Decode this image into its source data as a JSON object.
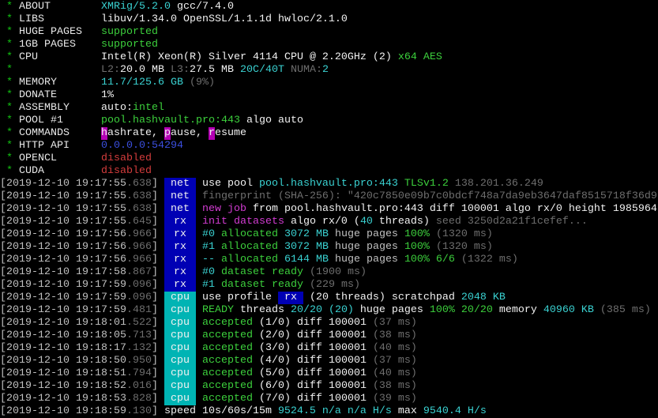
{
  "colors": {
    "net_tag": "#0000b4",
    "rx_tag": "#0000b4",
    "cpu_tag": "#00b4b4",
    "green": "#3ccf3c",
    "cyan": "#3ad2d2",
    "magenta": "#d23cd2",
    "red": "#d43c3c",
    "blue": "#3b4fe0",
    "dim": "#6e6e6e"
  },
  "header": [
    {
      "label": "ABOUT",
      "segments": [
        {
          "t": "XMRig/5.2.0",
          "s": "c"
        },
        {
          "t": " gcc/7.4.0",
          "s": "W"
        }
      ]
    },
    {
      "label": "LIBS",
      "segments": [
        {
          "t": "libuv/1.34.0 OpenSSL/1.1.1d hwloc/2.1.0",
          "s": "W"
        }
      ]
    },
    {
      "label": "HUGE PAGES",
      "segments": [
        {
          "t": "supported",
          "s": "g"
        }
      ]
    },
    {
      "label": "1GB PAGES",
      "segments": [
        {
          "t": "supported",
          "s": "g"
        }
      ]
    },
    {
      "label": "CPU",
      "segments": [
        {
          "t": "Intel(R) Xeon(R) Silver 4114 CPU @ 2.20GHz (2) ",
          "s": "W"
        },
        {
          "t": "x64 AES",
          "s": "g"
        }
      ]
    },
    {
      "label": "",
      "segments": [
        {
          "t": "L2:",
          "s": "k"
        },
        {
          "t": "20.0 MB ",
          "s": "W"
        },
        {
          "t": "L3:",
          "s": "k"
        },
        {
          "t": "27.5 MB ",
          "s": "W"
        },
        {
          "t": "20C/40T ",
          "s": "c"
        },
        {
          "t": "NUMA:",
          "s": "k"
        },
        {
          "t": "2",
          "s": "c"
        }
      ]
    },
    {
      "label": "MEMORY",
      "segments": [
        {
          "t": "11.7/125.6 GB ",
          "s": "c"
        },
        {
          "t": "(9%)",
          "s": "k"
        }
      ]
    },
    {
      "label": "DONATE",
      "segments": [
        {
          "t": "1%",
          "s": "W"
        }
      ]
    },
    {
      "label": "ASSEMBLY",
      "segments": [
        {
          "t": "auto:",
          "s": "W"
        },
        {
          "t": "intel",
          "s": "g"
        }
      ]
    },
    {
      "label": "POOL #1",
      "segments": [
        {
          "t": "pool.hashvault.pro:443 ",
          "s": "g"
        },
        {
          "t": "algo auto",
          "s": "W"
        }
      ]
    },
    {
      "label": "COMMANDS",
      "segments": [
        {
          "t": "h",
          "s": "hl"
        },
        {
          "t": "ashrate, ",
          "s": "W"
        },
        {
          "t": "p",
          "s": "hl"
        },
        {
          "t": "ause, ",
          "s": "W"
        },
        {
          "t": "r",
          "s": "hl"
        },
        {
          "t": "esume",
          "s": "W"
        }
      ]
    },
    {
      "label": "HTTP API",
      "segments": [
        {
          "t": "0.0.0.0:54294",
          "s": "b"
        }
      ]
    },
    {
      "label": "OPENCL",
      "segments": [
        {
          "t": "disabled",
          "s": "r"
        }
      ]
    },
    {
      "label": "CUDA",
      "segments": [
        {
          "t": "disabled",
          "s": "r"
        }
      ]
    }
  ],
  "log": [
    {
      "ts": "2019-12-10 19:17:55",
      "ms": ".638",
      "tag": "net",
      "segments": [
        {
          "t": "use pool ",
          "s": "W"
        },
        {
          "t": "pool.hashvault.pro:443 ",
          "s": "c"
        },
        {
          "t": "TLSv1.2 ",
          "s": "g"
        },
        {
          "t": "138.201.36.249",
          "s": "k"
        }
      ]
    },
    {
      "ts": "2019-12-10 19:17:55",
      "ms": ".638",
      "tag": "net",
      "segments": [
        {
          "t": "fingerprint (SHA-256): \"420c7850e09b7c0bdcf748a7da9eb3647daf8515718f36d9",
          "s": "k"
        }
      ]
    },
    {
      "ts": "2019-12-10 19:17:55",
      "ms": ".638",
      "tag": "net",
      "segments": [
        {
          "t": "new job",
          "s": "m"
        },
        {
          "t": " from pool.hashvault.pro:443 diff 100001 algo rx/0 height 1985964",
          "s": "W"
        }
      ]
    },
    {
      "ts": "2019-12-10 19:17:55",
      "ms": ".645",
      "tag": "rx",
      "segments": [
        {
          "t": "init datasets",
          "s": "m"
        },
        {
          "t": " algo rx/0 (",
          "s": "W"
        },
        {
          "t": "40",
          "s": "c"
        },
        {
          "t": " threads) ",
          "s": "W"
        },
        {
          "t": "seed 3250d2a21f1cefef...",
          "s": "k"
        }
      ]
    },
    {
      "ts": "2019-12-10 19:17:56",
      "ms": ".966",
      "tag": "rx",
      "segments": [
        {
          "t": "#0 ",
          "s": "c"
        },
        {
          "t": "allocated ",
          "s": "g"
        },
        {
          "t": "3072 MB ",
          "s": "c"
        },
        {
          "t": "huge pages ",
          "s": "w"
        },
        {
          "t": "100% ",
          "s": "g"
        },
        {
          "t": "(1320 ms)",
          "s": "k"
        }
      ]
    },
    {
      "ts": "2019-12-10 19:17:56",
      "ms": ".966",
      "tag": "rx",
      "segments": [
        {
          "t": "#1 ",
          "s": "c"
        },
        {
          "t": "allocated ",
          "s": "g"
        },
        {
          "t": "3072 MB ",
          "s": "c"
        },
        {
          "t": "huge pages ",
          "s": "w"
        },
        {
          "t": "100% ",
          "s": "g"
        },
        {
          "t": "(1320 ms)",
          "s": "k"
        }
      ]
    },
    {
      "ts": "2019-12-10 19:17:56",
      "ms": ".966",
      "tag": "rx",
      "segments": [
        {
          "t": "-- ",
          "s": "c"
        },
        {
          "t": "allocated ",
          "s": "g"
        },
        {
          "t": "6144 MB ",
          "s": "c"
        },
        {
          "t": "huge pages ",
          "s": "w"
        },
        {
          "t": "100% 6/6 ",
          "s": "g"
        },
        {
          "t": "(1322 ms)",
          "s": "k"
        }
      ]
    },
    {
      "ts": "2019-12-10 19:17:58",
      "ms": ".867",
      "tag": "rx",
      "segments": [
        {
          "t": "#0 ",
          "s": "c"
        },
        {
          "t": "dataset ready ",
          "s": "g"
        },
        {
          "t": "(1900 ms)",
          "s": "k"
        }
      ]
    },
    {
      "ts": "2019-12-10 19:17:59",
      "ms": ".096",
      "tag": "rx",
      "segments": [
        {
          "t": "#1 ",
          "s": "c"
        },
        {
          "t": "dataset ready ",
          "s": "g"
        },
        {
          "t": "(229 ms)",
          "s": "k"
        }
      ]
    },
    {
      "ts": "2019-12-10 19:17:59",
      "ms": ".096",
      "tag": "cpu",
      "segments": [
        {
          "t": "use profile ",
          "s": "W"
        },
        {
          "t": " rx ",
          "s": "tagrx"
        },
        {
          "t": " (20 threads) scratchpad ",
          "s": "W"
        },
        {
          "t": "2048 KB",
          "s": "c"
        }
      ]
    },
    {
      "ts": "2019-12-10 19:17:59",
      "ms": ".481",
      "tag": "cpu",
      "segments": [
        {
          "t": "READY",
          "s": "g"
        },
        {
          "t": " threads ",
          "s": "W"
        },
        {
          "t": "20/20 (20)",
          "s": "c"
        },
        {
          "t": " huge pages ",
          "s": "W"
        },
        {
          "t": "100% 20/20",
          "s": "g"
        },
        {
          "t": " memory ",
          "s": "W"
        },
        {
          "t": "40960 KB ",
          "s": "c"
        },
        {
          "t": "(385 ms)",
          "s": "k"
        }
      ]
    },
    {
      "ts": "2019-12-10 19:18:01",
      "ms": ".522",
      "tag": "cpu",
      "segments": [
        {
          "t": "accepted",
          "s": "g"
        },
        {
          "t": " (1/0) diff 100001 ",
          "s": "W"
        },
        {
          "t": "(37 ms)",
          "s": "k"
        }
      ]
    },
    {
      "ts": "2019-12-10 19:18:05",
      "ms": ".713",
      "tag": "cpu",
      "segments": [
        {
          "t": "accepted",
          "s": "g"
        },
        {
          "t": " (2/0) diff 100001 ",
          "s": "W"
        },
        {
          "t": "(38 ms)",
          "s": "k"
        }
      ]
    },
    {
      "ts": "2019-12-10 19:18:17",
      "ms": ".132",
      "tag": "cpu",
      "segments": [
        {
          "t": "accepted",
          "s": "g"
        },
        {
          "t": " (3/0) diff 100001 ",
          "s": "W"
        },
        {
          "t": "(40 ms)",
          "s": "k"
        }
      ]
    },
    {
      "ts": "2019-12-10 19:18:50",
      "ms": ".950",
      "tag": "cpu",
      "segments": [
        {
          "t": "accepted",
          "s": "g"
        },
        {
          "t": " (4/0) diff 100001 ",
          "s": "W"
        },
        {
          "t": "(37 ms)",
          "s": "k"
        }
      ]
    },
    {
      "ts": "2019-12-10 19:18:51",
      "ms": ".794",
      "tag": "cpu",
      "segments": [
        {
          "t": "accepted",
          "s": "g"
        },
        {
          "t": " (5/0) diff 100001 ",
          "s": "W"
        },
        {
          "t": "(40 ms)",
          "s": "k"
        }
      ]
    },
    {
      "ts": "2019-12-10 19:18:52",
      "ms": ".016",
      "tag": "cpu",
      "segments": [
        {
          "t": "accepted",
          "s": "g"
        },
        {
          "t": " (6/0) diff 100001 ",
          "s": "W"
        },
        {
          "t": "(38 ms)",
          "s": "k"
        }
      ]
    },
    {
      "ts": "2019-12-10 19:18:53",
      "ms": ".828",
      "tag": "cpu",
      "segments": [
        {
          "t": "accepted",
          "s": "g"
        },
        {
          "t": " (7/0) diff 100001 ",
          "s": "W"
        },
        {
          "t": "(39 ms)",
          "s": "k"
        }
      ]
    },
    {
      "ts": "2019-12-10 19:18:59",
      "ms": ".130",
      "tag": "",
      "segments": [
        {
          "t": "speed 10s/60s/15m ",
          "s": "W"
        },
        {
          "t": "9524.5 n/a n/a H/s",
          "s": "c"
        },
        {
          "t": " max ",
          "s": "W"
        },
        {
          "t": "9540.4 H/s",
          "s": "c"
        }
      ]
    }
  ]
}
